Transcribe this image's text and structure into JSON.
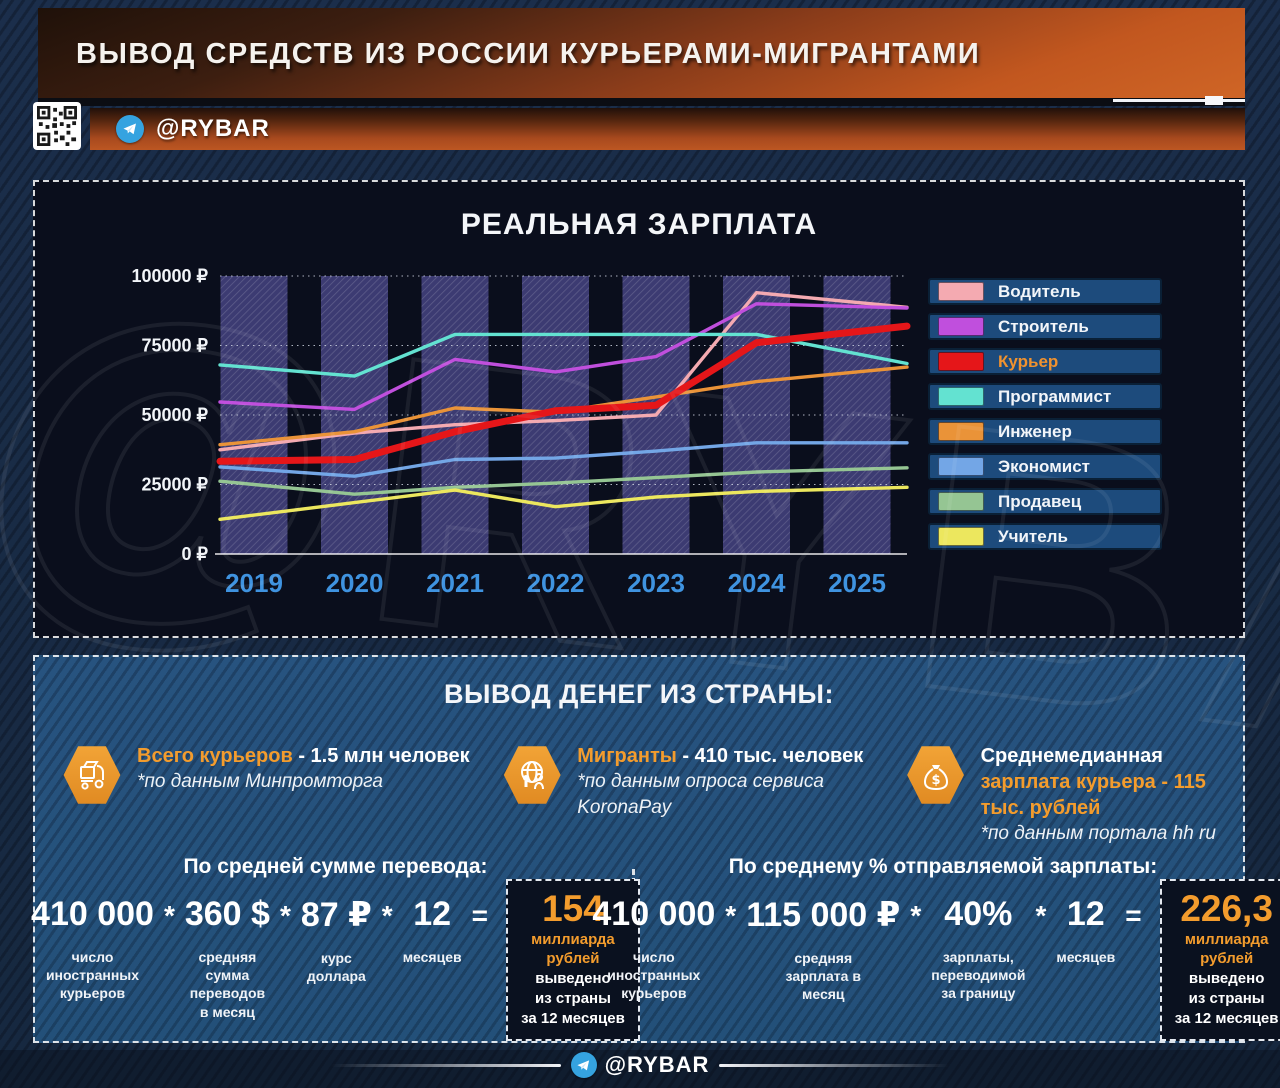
{
  "header": {
    "title": "ВЫВОД СРЕДСТВ ИЗ РОССИИ КУРЬЕРАМИ-МИГРАНТАМИ",
    "badge": "@RYBAR"
  },
  "chart_data": {
    "type": "line",
    "title": "РЕАЛЬНАЯ ЗАРПЛАТА",
    "x": [
      "2019",
      "2020",
      "2021",
      "2022",
      "2023",
      "2024",
      "2025"
    ],
    "ylim": [
      0,
      100000
    ],
    "y_ticks": [
      {
        "value": 0,
        "label": "0 ₽"
      },
      {
        "value": 25000,
        "label": "25000 ₽"
      },
      {
        "value": 50000,
        "label": "50000 ₽"
      },
      {
        "value": 75000,
        "label": "75000 ₽"
      },
      {
        "value": 100000,
        "label": "100000 ₽"
      }
    ],
    "grid": "dotted-horizontal",
    "legend_position": "right",
    "highlight_series": "Курьер",
    "series": [
      {
        "name": "Водитель",
        "color": "#f4aab1",
        "values": [
          39000,
          43500,
          46500,
          48000,
          50000,
          94000,
          90500
        ]
      },
      {
        "name": "Строитель",
        "color": "#c04fdd",
        "values": [
          54000,
          52000,
          70000,
          65500,
          71000,
          90000,
          89000
        ]
      },
      {
        "name": "Курьер",
        "color": "#e51619",
        "values": [
          33500,
          34000,
          44000,
          51500,
          53500,
          76000,
          80000
        ]
      },
      {
        "name": "Программист",
        "color": "#63e2d1",
        "values": [
          67000,
          64000,
          79000,
          79000,
          79000,
          79000,
          72000
        ]
      },
      {
        "name": "Инженер",
        "color": "#ea9338",
        "values": [
          40500,
          44000,
          52500,
          51000,
          56500,
          62000,
          65500
        ]
      },
      {
        "name": "Экономист",
        "color": "#73a6e6",
        "values": [
          30500,
          28000,
          34000,
          34500,
          37000,
          40000,
          40000
        ]
      },
      {
        "name": "Продавец",
        "color": "#95c593",
        "values": [
          25000,
          21500,
          24000,
          25500,
          27500,
          29500,
          30500
        ]
      },
      {
        "name": "Учитель",
        "color": "#ece75e",
        "values": [
          14000,
          18500,
          23000,
          17000,
          20500,
          22500,
          23500
        ]
      }
    ]
  },
  "outflow": {
    "title": "ВЫВОД ДЕНЕГ ИЗ СТРАНЫ:",
    "stats": [
      {
        "before": "",
        "accent": "Всего курьеров",
        "after": " - 1.5 млн человек",
        "note": "*по данным Минпромторга",
        "icon": "courier-icon"
      },
      {
        "before": "",
        "accent": "Мигранты",
        "after": " - 410 тыс. человек",
        "note": "*по данным опроса сервиса KoronaPay",
        "icon": "globe-icon"
      },
      {
        "before": "Среднемедианная ",
        "accent": "зарплата курьера - 115 тыс. рублей",
        "after": "",
        "note": "*по данным портала hh ru",
        "icon": "money-bag-icon"
      }
    ]
  },
  "formulas": {
    "op_symbol": "*",
    "eq_symbol": "=",
    "left": {
      "title": "По средней сумме перевода:",
      "terms": [
        {
          "value": "410 000",
          "label": "число иностранных курьеров"
        },
        {
          "value": "360 $",
          "label": "средняя сумма переводов в месяц"
        },
        {
          "value": "87 ₽",
          "label": "курс доллара"
        },
        {
          "value": "12",
          "label": "месяцев"
        }
      ],
      "result": {
        "number": "154",
        "line1_accent": "миллиарда",
        "line2_accent": "рублей",
        "line2_rest": " выведено",
        "line3": "из страны",
        "line4": "за 12 месяцев"
      }
    },
    "right": {
      "title": "По среднему % отправляемой зарплаты:",
      "terms": [
        {
          "value": "410 000",
          "label": "число иностранных курьеров"
        },
        {
          "value": "115 000 ₽",
          "label": "средняя зарплата в месяц"
        },
        {
          "value": "40%",
          "label": "зарплаты, переводимой за границу"
        },
        {
          "value": "12",
          "label": "месяцев"
        }
      ],
      "result": {
        "number": "226,3",
        "line1_accent": "миллиарда",
        "line2_accent": "рублей",
        "line2_rest": " выведено",
        "line3": "из страны",
        "line4": "за 12 месяцев"
      }
    }
  },
  "footer": {
    "badge": "@RYBAR"
  },
  "watermark": "@RYBAR",
  "colors": {
    "accent_orange": "#f39c2d",
    "banner_orange": "#c2571f",
    "panel_blue": "#27537f",
    "chart_bg": "#0a0e1c",
    "year_label_blue": "#3f93e0",
    "telegram_blue": "#35a3e0"
  }
}
